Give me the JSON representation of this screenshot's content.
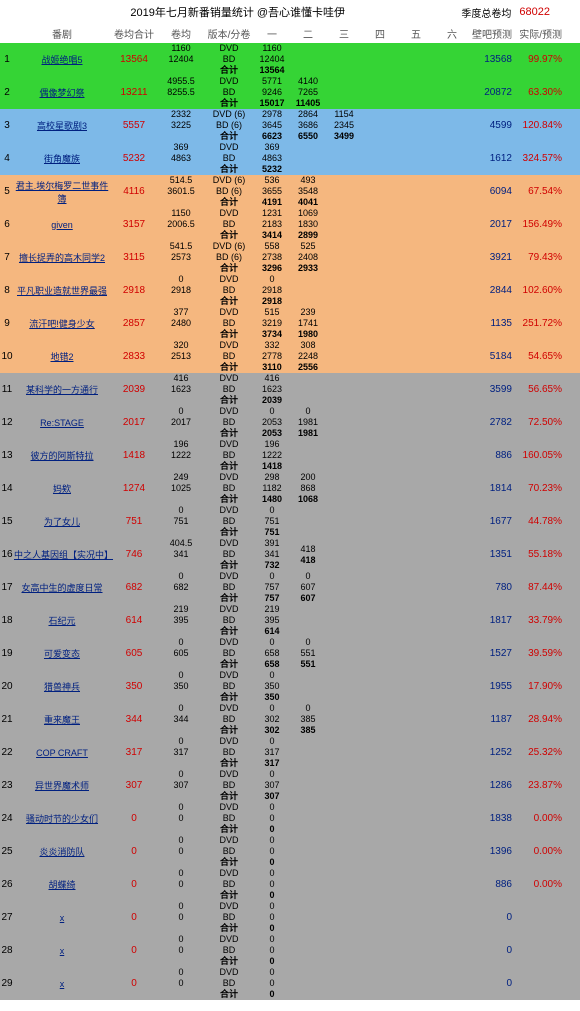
{
  "header": {
    "title": "2019年七月新番销量统计 @吾心谁懂卡哇伊",
    "season_label": "季度总卷均",
    "season_value": "68022"
  },
  "columns": {
    "name": "番剧",
    "avg": "卷均合计",
    "javg": "卷均",
    "fmt": "版本/分卷",
    "v1": "一",
    "v2": "二",
    "v3": "三",
    "v4": "四",
    "v5": "五",
    "v6": "六",
    "pred": "壁吧预测",
    "ratio": "实际/预测"
  },
  "rows": [
    {
      "idx": 1,
      "bg": "green",
      "name": "战姬绝唱5",
      "avg": "13564",
      "javg": [
        "1160",
        "12404"
      ],
      "fmt": [
        "DVD",
        "BD",
        "合计"
      ],
      "vols": [
        [
          "1160"
        ],
        [
          "12404"
        ],
        [
          "13564"
        ]
      ],
      "pred": "13568",
      "ratio": "99.97%"
    },
    {
      "idx": 2,
      "bg": "green",
      "name": "偶像梦幻祭",
      "avg": "13211",
      "javg": [
        "4955.5",
        "8255.5"
      ],
      "fmt": [
        "DVD",
        "BD",
        "合计"
      ],
      "vols": [
        [
          "5771",
          "4140"
        ],
        [
          "9246",
          "7265"
        ],
        [
          "15017",
          "11405"
        ]
      ],
      "pred": "20872",
      "ratio": "63.30%"
    },
    {
      "idx": 3,
      "bg": "blue",
      "name": "高校星歌剧3",
      "avg": "5557",
      "javg": [
        "2332",
        "3225"
      ],
      "fmt": [
        "DVD (6)",
        "BD (6)",
        "合计"
      ],
      "vols": [
        [
          "2978",
          "2864",
          "1154"
        ],
        [
          "3645",
          "3686",
          "2345"
        ],
        [
          "6623",
          "6550",
          "3499"
        ]
      ],
      "pred": "4599",
      "ratio": "120.84%"
    },
    {
      "idx": 4,
      "bg": "blue",
      "name": "街角魔族",
      "avg": "5232",
      "javg": [
        "369",
        "4863"
      ],
      "fmt": [
        "DVD",
        "BD",
        "合计"
      ],
      "vols": [
        [
          "369"
        ],
        [
          "4863"
        ],
        [
          "5232"
        ]
      ],
      "pred": "1612",
      "ratio": "324.57%"
    },
    {
      "idx": 5,
      "bg": "orange",
      "name": "君主.埃尔梅罗二世事件簿",
      "avg": "4116",
      "javg": [
        "514.5",
        "3601.5"
      ],
      "fmt": [
        "DVD (6)",
        "BD (6)",
        "合计"
      ],
      "vols": [
        [
          "536",
          "493"
        ],
        [
          "3655",
          "3548"
        ],
        [
          "4191",
          "4041"
        ]
      ],
      "pred": "6094",
      "ratio": "67.54%"
    },
    {
      "idx": 6,
      "bg": "orange",
      "name": "given",
      "avg": "3157",
      "javg": [
        "1150",
        "2006.5"
      ],
      "fmt": [
        "DVD",
        "BD",
        "合计"
      ],
      "vols": [
        [
          "1231",
          "1069"
        ],
        [
          "2183",
          "1830"
        ],
        [
          "3414",
          "2899"
        ]
      ],
      "pred": "2017",
      "ratio": "156.49%"
    },
    {
      "idx": 7,
      "bg": "orange",
      "name": "擅长捉弄的高木同学2",
      "avg": "3115",
      "javg": [
        "541.5",
        "2573"
      ],
      "fmt": [
        "DVD (6)",
        "BD (6)",
        "合计"
      ],
      "vols": [
        [
          "558",
          "525"
        ],
        [
          "2738",
          "2408"
        ],
        [
          "3296",
          "2933"
        ]
      ],
      "pred": "3921",
      "ratio": "79.43%"
    },
    {
      "idx": 8,
      "bg": "orange",
      "name": "平凡职业造就世界最强",
      "avg": "2918",
      "javg": [
        "0",
        "2918"
      ],
      "fmt": [
        "DVD",
        "BD",
        "合计"
      ],
      "vols": [
        [
          "0"
        ],
        [
          "2918"
        ],
        [
          "2918"
        ]
      ],
      "pred": "2844",
      "ratio": "102.60%"
    },
    {
      "idx": 9,
      "bg": "orange",
      "name": "流汗吧!健身少女",
      "avg": "2857",
      "javg": [
        "377",
        "2480"
      ],
      "fmt": [
        "DVD",
        "BD",
        "合计"
      ],
      "vols": [
        [
          "515",
          "239"
        ],
        [
          "3219",
          "1741"
        ],
        [
          "3734",
          "1980"
        ]
      ],
      "pred": "1135",
      "ratio": "251.72%"
    },
    {
      "idx": 10,
      "bg": "orange",
      "name": "地错2",
      "avg": "2833",
      "javg": [
        "320",
        "2513"
      ],
      "fmt": [
        "DVD",
        "BD",
        "合计"
      ],
      "vols": [
        [
          "332",
          "308"
        ],
        [
          "2778",
          "2248"
        ],
        [
          "3110",
          "2556"
        ]
      ],
      "pred": "5184",
      "ratio": "54.65%"
    },
    {
      "idx": 11,
      "bg": "gray",
      "name": "某科学的一方通行",
      "avg": "2039",
      "javg": [
        "416",
        "1623"
      ],
      "fmt": [
        "DVD",
        "BD",
        "合计"
      ],
      "vols": [
        [
          "416"
        ],
        [
          "1623"
        ],
        [
          "2039"
        ]
      ],
      "pred": "3599",
      "ratio": "56.65%"
    },
    {
      "idx": 12,
      "bg": "gray",
      "name": "Re:STAGE",
      "avg": "2017",
      "javg": [
        "0",
        "2017"
      ],
      "fmt": [
        "DVD",
        "BD",
        "合计"
      ],
      "vols": [
        [
          "0",
          "0"
        ],
        [
          "2053",
          "1981"
        ],
        [
          "2053",
          "1981"
        ]
      ],
      "pred": "2782",
      "ratio": "72.50%"
    },
    {
      "idx": 13,
      "bg": "gray",
      "name": "彼方的阿斯特拉",
      "avg": "1418",
      "javg": [
        "196",
        "1222"
      ],
      "fmt": [
        "DVD",
        "BD",
        "合计"
      ],
      "vols": [
        [
          "196"
        ],
        [
          "1222"
        ],
        [
          "1418"
        ]
      ],
      "pred": "886",
      "ratio": "160.05%"
    },
    {
      "idx": 14,
      "bg": "gray",
      "name": "妈欸",
      "avg": "1274",
      "javg": [
        "249",
        "1025"
      ],
      "fmt": [
        "DVD",
        "BD",
        "合计"
      ],
      "vols": [
        [
          "298",
          "200"
        ],
        [
          "1182",
          "868"
        ],
        [
          "1480",
          "1068"
        ]
      ],
      "pred": "1814",
      "ratio": "70.23%"
    },
    {
      "idx": 15,
      "bg": "gray",
      "name": "为了女儿",
      "avg": "751",
      "javg": [
        "0",
        "751"
      ],
      "fmt": [
        "DVD",
        "BD",
        "合计"
      ],
      "vols": [
        [
          "0"
        ],
        [
          "751"
        ],
        [
          "751"
        ]
      ],
      "pred": "1677",
      "ratio": "44.78%"
    },
    {
      "idx": 16,
      "bg": "gray",
      "name": "中之人基因组【实况中】",
      "avg": "746",
      "javg": [
        "404.5",
        "341"
      ],
      "fmt": [
        "DVD",
        "BD",
        "合计"
      ],
      "vols": [
        [
          "391",
          "418"
        ],
        [
          "341"
        ],
        [
          "732",
          "418"
        ]
      ],
      "pred": "1351",
      "ratio": "55.18%"
    },
    {
      "idx": 17,
      "bg": "gray",
      "name": "女高中生的虚度日常",
      "avg": "682",
      "javg": [
        "0",
        "682"
      ],
      "fmt": [
        "DVD",
        "BD",
        "合计"
      ],
      "vols": [
        [
          "0",
          "0"
        ],
        [
          "757",
          "607"
        ],
        [
          "757",
          "607"
        ]
      ],
      "pred": "780",
      "ratio": "87.44%"
    },
    {
      "idx": 18,
      "bg": "gray",
      "name": "石纪元",
      "avg": "614",
      "javg": [
        "219",
        "395"
      ],
      "fmt": [
        "DVD",
        "BD",
        "合计"
      ],
      "vols": [
        [
          "219"
        ],
        [
          "395"
        ],
        [
          "614"
        ]
      ],
      "pred": "1817",
      "ratio": "33.79%"
    },
    {
      "idx": 19,
      "bg": "gray",
      "name": "可爱变态",
      "avg": "605",
      "javg": [
        "0",
        "605"
      ],
      "fmt": [
        "DVD",
        "BD",
        "合计"
      ],
      "vols": [
        [
          "0",
          "0"
        ],
        [
          "658",
          "551"
        ],
        [
          "658",
          "551"
        ]
      ],
      "pred": "1527",
      "ratio": "39.59%"
    },
    {
      "idx": 20,
      "bg": "gray",
      "name": "猎兽神兵",
      "avg": "350",
      "javg": [
        "0",
        "350"
      ],
      "fmt": [
        "DVD",
        "BD",
        "合计"
      ],
      "vols": [
        [
          "0"
        ],
        [
          "350"
        ],
        [
          "350"
        ]
      ],
      "pred": "1955",
      "ratio": "17.90%"
    },
    {
      "idx": 21,
      "bg": "gray",
      "name": "重来魔王",
      "avg": "344",
      "javg": [
        "0",
        "344"
      ],
      "fmt": [
        "DVD",
        "BD",
        "合计"
      ],
      "vols": [
        [
          "0",
          "0"
        ],
        [
          "302",
          "385"
        ],
        [
          "302",
          "385"
        ]
      ],
      "pred": "1187",
      "ratio": "28.94%"
    },
    {
      "idx": 22,
      "bg": "gray",
      "name": "COP CRAFT",
      "avg": "317",
      "javg": [
        "0",
        "317"
      ],
      "fmt": [
        "DVD",
        "BD",
        "合计"
      ],
      "vols": [
        [
          "0"
        ],
        [
          "317"
        ],
        [
          "317"
        ]
      ],
      "pred": "1252",
      "ratio": "25.32%"
    },
    {
      "idx": 23,
      "bg": "gray",
      "name": "异世界魔术师",
      "avg": "307",
      "javg": [
        "0",
        "307"
      ],
      "fmt": [
        "DVD",
        "BD",
        "合计"
      ],
      "vols": [
        [
          "0"
        ],
        [
          "307"
        ],
        [
          "307"
        ]
      ],
      "pred": "1286",
      "ratio": "23.87%"
    },
    {
      "idx": 24,
      "bg": "gray",
      "name": "骚动时节的少女们",
      "avg": "0",
      "javg": [
        "0",
        "0"
      ],
      "fmt": [
        "DVD",
        "BD",
        "合计"
      ],
      "vols": [
        [
          "0"
        ],
        [
          "0"
        ],
        [
          "0"
        ]
      ],
      "pred": "1838",
      "ratio": "0.00%"
    },
    {
      "idx": 25,
      "bg": "gray",
      "name": "炎炎消防队",
      "avg": "0",
      "javg": [
        "0",
        "0"
      ],
      "fmt": [
        "DVD",
        "BD",
        "合计"
      ],
      "vols": [
        [
          "0"
        ],
        [
          "0"
        ],
        [
          "0"
        ]
      ],
      "pred": "1396",
      "ratio": "0.00%"
    },
    {
      "idx": 26,
      "bg": "gray",
      "name": "胡蝶绮",
      "avg": "0",
      "javg": [
        "0",
        "0"
      ],
      "fmt": [
        "DVD",
        "BD",
        "合计"
      ],
      "vols": [
        [
          "0"
        ],
        [
          "0"
        ],
        [
          "0"
        ]
      ],
      "pred": "886",
      "ratio": "0.00%"
    },
    {
      "idx": 27,
      "bg": "gray",
      "name": "x",
      "avg": "0",
      "javg": [
        "0",
        "0"
      ],
      "fmt": [
        "DVD",
        "BD",
        "合计"
      ],
      "vols": [
        [
          "0"
        ],
        [
          "0"
        ],
        [
          "0"
        ]
      ],
      "pred": "0",
      "ratio": ""
    },
    {
      "idx": 28,
      "bg": "gray",
      "name": "x",
      "avg": "0",
      "javg": [
        "0",
        "0"
      ],
      "fmt": [
        "DVD",
        "BD",
        "合计"
      ],
      "vols": [
        [
          "0"
        ],
        [
          "0"
        ],
        [
          "0"
        ]
      ],
      "pred": "0",
      "ratio": ""
    },
    {
      "idx": 29,
      "bg": "gray",
      "name": "x",
      "avg": "0",
      "javg": [
        "0",
        "0"
      ],
      "fmt": [
        "DVD",
        "BD",
        "合计"
      ],
      "vols": [
        [
          "0"
        ],
        [
          "0"
        ],
        [
          "0"
        ]
      ],
      "pred": "0",
      "ratio": ""
    }
  ]
}
